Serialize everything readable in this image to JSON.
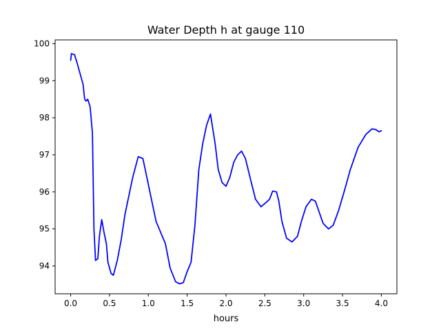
{
  "chart_data": {
    "type": "line",
    "title": "Water Depth h at gauge 110",
    "xlabel": "hours",
    "ylabel": "",
    "xlim": [
      -0.2,
      4.2
    ],
    "ylim": [
      93.25,
      100.1
    ],
    "xticks": [
      0.0,
      0.5,
      1.0,
      1.5,
      2.0,
      2.5,
      3.0,
      3.5,
      4.0
    ],
    "xtick_labels": [
      "0.0",
      "0.5",
      "1.0",
      "1.5",
      "2.0",
      "2.5",
      "3.0",
      "3.5",
      "4.0"
    ],
    "yticks": [
      94,
      95,
      96,
      97,
      98,
      99,
      100
    ],
    "ytick_labels": [
      "94",
      "95",
      "96",
      "97",
      "98",
      "99",
      "100"
    ],
    "grid": false,
    "series": [
      {
        "color": "#0000ff",
        "x": [
          0.0,
          0.01,
          0.05,
          0.08,
          0.12,
          0.16,
          0.18,
          0.2,
          0.22,
          0.25,
          0.28,
          0.3,
          0.32,
          0.35,
          0.37,
          0.4,
          0.43,
          0.46,
          0.48,
          0.52,
          0.55,
          0.6,
          0.65,
          0.7,
          0.8,
          0.87,
          0.93,
          0.98,
          1.04,
          1.1,
          1.15,
          1.22,
          1.28,
          1.35,
          1.4,
          1.45,
          1.5,
          1.55,
          1.6,
          1.65,
          1.7,
          1.75,
          1.8,
          1.86,
          1.9,
          1.95,
          2.0,
          2.05,
          2.1,
          2.15,
          2.2,
          2.25,
          2.32,
          2.38,
          2.45,
          2.52,
          2.56,
          2.6,
          2.65,
          2.68,
          2.72,
          2.78,
          2.85,
          2.92,
          2.97,
          3.03,
          3.1,
          3.15,
          3.2,
          3.25,
          3.32,
          3.38,
          3.45,
          3.52,
          3.6,
          3.7,
          3.8,
          3.88,
          3.93,
          3.97,
          4.0
        ],
        "y": [
          99.55,
          99.73,
          99.7,
          99.5,
          99.2,
          98.9,
          98.5,
          98.45,
          98.5,
          98.3,
          97.6,
          95.0,
          94.15,
          94.2,
          94.8,
          95.25,
          94.9,
          94.6,
          94.1,
          93.8,
          93.75,
          94.15,
          94.7,
          95.4,
          96.4,
          96.95,
          96.9,
          96.4,
          95.8,
          95.2,
          94.95,
          94.6,
          93.95,
          93.58,
          93.52,
          93.55,
          93.85,
          94.1,
          95.1,
          96.6,
          97.3,
          97.8,
          98.1,
          97.3,
          96.6,
          96.25,
          96.15,
          96.4,
          96.8,
          97.0,
          97.1,
          96.9,
          96.3,
          95.8,
          95.6,
          95.72,
          95.8,
          96.02,
          96.0,
          95.75,
          95.2,
          94.75,
          94.65,
          94.8,
          95.2,
          95.6,
          95.8,
          95.75,
          95.45,
          95.15,
          95.0,
          95.1,
          95.5,
          96.0,
          96.6,
          97.2,
          97.55,
          97.7,
          97.68,
          97.62,
          97.65
        ]
      }
    ]
  }
}
